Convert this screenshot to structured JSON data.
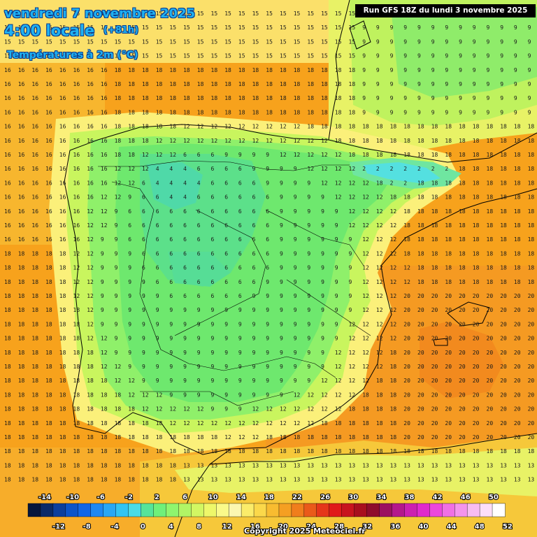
{
  "title": {
    "date": "vendredi 7 novembre 2025",
    "hour": "4:00 locale",
    "lead": "(+81h)",
    "variable": "Températures à 2m (°C)"
  },
  "run_label": "Run GFS 18Z du lundi 3 novembre 2025",
  "copyright": "Copyright 2025 Meteociel.fr",
  "legend": {
    "top_labels": [
      "-14",
      "-10",
      "-6",
      "-2",
      "2",
      "6",
      "10",
      "14",
      "18",
      "22",
      "26",
      "30",
      "34",
      "38",
      "42",
      "46",
      "50"
    ],
    "bottom_labels": [
      "-12",
      "-8",
      "-4",
      "0",
      "4",
      "8",
      "12",
      "16",
      "20",
      "24",
      "28",
      "32",
      "36",
      "40",
      "44",
      "48",
      "52"
    ],
    "colors": [
      "#06163c",
      "#0a2a68",
      "#0c3f9c",
      "#0c54c8",
      "#1166e6",
      "#1f88f2",
      "#2aa7f4",
      "#33c4f2",
      "#4adbe6",
      "#56e49a",
      "#6ff07a",
      "#8ff56e",
      "#b1f566",
      "#d2f763",
      "#eef86a",
      "#fafa8a",
      "#fbf7b0",
      "#fbec6a",
      "#fbd84a",
      "#f8bc30",
      "#f59f22",
      "#f07e1c",
      "#ea5a1a",
      "#e5361a",
      "#e01a1a",
      "#c8141e",
      "#a80f1e",
      "#8e0c2c",
      "#9c1060",
      "#b4188c",
      "#cc20b0",
      "#e02acc",
      "#ec48dc",
      "#f070e4",
      "#f494ec",
      "#f8bcf2",
      "#fcdef8",
      "#ffffff"
    ]
  }
}
